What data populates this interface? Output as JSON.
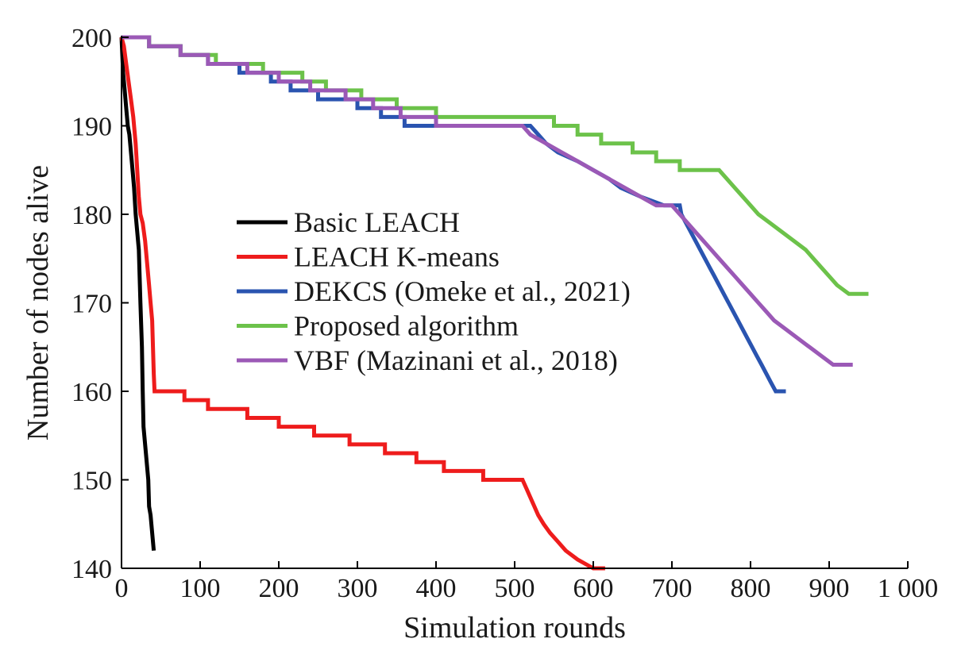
{
  "chart_data": {
    "type": "line",
    "xlabel": "Simulation rounds",
    "ylabel": "Number of nodes alive",
    "xlim": [
      0,
      1000
    ],
    "ylim": [
      140,
      200
    ],
    "xticks": [
      0,
      100,
      200,
      300,
      400,
      500,
      600,
      700,
      800,
      900,
      1000
    ],
    "xtick_labels": [
      "0",
      "100",
      "200",
      "300",
      "400",
      "500",
      "600",
      "700",
      "800",
      "900",
      "1 000"
    ],
    "yticks": [
      140,
      150,
      160,
      170,
      180,
      190,
      200
    ],
    "ytick_labels": [
      "140",
      "150",
      "160",
      "170",
      "180",
      "190",
      "200"
    ],
    "grid": false,
    "legend_position": "center-left",
    "series": [
      {
        "name": "Basic LEACH",
        "color": "#000000",
        "points": [
          [
            0,
            200
          ],
          [
            2,
            196
          ],
          [
            4,
            194
          ],
          [
            6,
            192
          ],
          [
            8,
            190
          ],
          [
            10,
            189
          ],
          [
            12,
            187
          ],
          [
            14,
            185
          ],
          [
            16,
            183
          ],
          [
            18,
            180
          ],
          [
            20,
            178
          ],
          [
            22,
            176
          ],
          [
            24,
            170
          ],
          [
            26,
            165
          ],
          [
            27,
            160
          ],
          [
            28,
            156
          ],
          [
            30,
            154
          ],
          [
            32,
            152
          ],
          [
            34,
            150
          ],
          [
            35,
            147
          ],
          [
            37,
            146
          ],
          [
            38,
            145
          ],
          [
            40,
            143
          ],
          [
            41,
            142
          ]
        ]
      },
      {
        "name": "LEACH K-means",
        "color": "#ee1c1c",
        "points": [
          [
            0,
            200
          ],
          [
            3,
            199
          ],
          [
            6,
            197
          ],
          [
            9,
            195
          ],
          [
            12,
            193
          ],
          [
            15,
            191
          ],
          [
            18,
            188
          ],
          [
            20,
            185
          ],
          [
            22,
            182
          ],
          [
            24,
            180
          ],
          [
            27,
            179
          ],
          [
            30,
            177
          ],
          [
            33,
            174
          ],
          [
            35,
            172
          ],
          [
            37,
            170
          ],
          [
            39,
            168
          ],
          [
            40,
            165
          ],
          [
            41,
            162
          ],
          [
            42,
            160
          ],
          [
            80,
            160
          ],
          [
            80,
            159
          ],
          [
            110,
            159
          ],
          [
            110,
            158
          ],
          [
            160,
            158
          ],
          [
            160,
            157
          ],
          [
            200,
            157
          ],
          [
            200,
            156
          ],
          [
            245,
            156
          ],
          [
            245,
            155
          ],
          [
            290,
            155
          ],
          [
            290,
            154
          ],
          [
            335,
            154
          ],
          [
            335,
            153
          ],
          [
            375,
            153
          ],
          [
            375,
            152
          ],
          [
            410,
            152
          ],
          [
            410,
            151
          ],
          [
            460,
            151
          ],
          [
            460,
            150
          ],
          [
            510,
            150
          ],
          [
            515,
            149
          ],
          [
            520,
            148
          ],
          [
            525,
            147
          ],
          [
            530,
            146
          ],
          [
            537,
            145
          ],
          [
            545,
            144
          ],
          [
            555,
            143
          ],
          [
            565,
            142
          ],
          [
            580,
            141
          ],
          [
            600,
            140
          ],
          [
            615,
            140
          ]
        ]
      },
      {
        "name": "DEKCS (Omeke et al., 2021)",
        "color": "#2a54b0",
        "points": [
          [
            0,
            200
          ],
          [
            35,
            200
          ],
          [
            35,
            199
          ],
          [
            75,
            199
          ],
          [
            75,
            198
          ],
          [
            110,
            198
          ],
          [
            110,
            197
          ],
          [
            150,
            197
          ],
          [
            150,
            196
          ],
          [
            190,
            196
          ],
          [
            190,
            195
          ],
          [
            215,
            195
          ],
          [
            215,
            194
          ],
          [
            250,
            194
          ],
          [
            250,
            193
          ],
          [
            300,
            193
          ],
          [
            300,
            192
          ],
          [
            330,
            192
          ],
          [
            330,
            191
          ],
          [
            360,
            191
          ],
          [
            360,
            190
          ],
          [
            520,
            190
          ],
          [
            530,
            189
          ],
          [
            540,
            188
          ],
          [
            555,
            187
          ],
          [
            580,
            186
          ],
          [
            600,
            185
          ],
          [
            620,
            184
          ],
          [
            635,
            183
          ],
          [
            660,
            182
          ],
          [
            690,
            181
          ],
          [
            710,
            181
          ],
          [
            712,
            180
          ],
          [
            718,
            179
          ],
          [
            724,
            178
          ],
          [
            730,
            177
          ],
          [
            736,
            176
          ],
          [
            742,
            175
          ],
          [
            748,
            174
          ],
          [
            754,
            173
          ],
          [
            760,
            172
          ],
          [
            766,
            171
          ],
          [
            772,
            170
          ],
          [
            778,
            169
          ],
          [
            784,
            168
          ],
          [
            790,
            167
          ],
          [
            796,
            166
          ],
          [
            802,
            165
          ],
          [
            808,
            164
          ],
          [
            814,
            163
          ],
          [
            820,
            162
          ],
          [
            826,
            161
          ],
          [
            832,
            160
          ],
          [
            845,
            160
          ]
        ]
      },
      {
        "name": "Proposed algorithm",
        "color": "#6cc24a",
        "points": [
          [
            0,
            200
          ],
          [
            35,
            200
          ],
          [
            35,
            199
          ],
          [
            75,
            199
          ],
          [
            75,
            198
          ],
          [
            120,
            198
          ],
          [
            120,
            197
          ],
          [
            180,
            197
          ],
          [
            180,
            196
          ],
          [
            230,
            196
          ],
          [
            230,
            195
          ],
          [
            260,
            195
          ],
          [
            260,
            194
          ],
          [
            305,
            194
          ],
          [
            305,
            193
          ],
          [
            350,
            193
          ],
          [
            350,
            192
          ],
          [
            400,
            192
          ],
          [
            400,
            191
          ],
          [
            550,
            191
          ],
          [
            550,
            190
          ],
          [
            580,
            190
          ],
          [
            580,
            189
          ],
          [
            610,
            189
          ],
          [
            610,
            188
          ],
          [
            650,
            188
          ],
          [
            650,
            187
          ],
          [
            680,
            187
          ],
          [
            680,
            186
          ],
          [
            710,
            186
          ],
          [
            710,
            185
          ],
          [
            760,
            185
          ],
          [
            770,
            184
          ],
          [
            780,
            183
          ],
          [
            790,
            182
          ],
          [
            800,
            181
          ],
          [
            810,
            180
          ],
          [
            825,
            179
          ],
          [
            840,
            178
          ],
          [
            855,
            177
          ],
          [
            870,
            176
          ],
          [
            880,
            175
          ],
          [
            890,
            174
          ],
          [
            900,
            173
          ],
          [
            910,
            172
          ],
          [
            925,
            171
          ],
          [
            950,
            171
          ]
        ]
      },
      {
        "name": "VBF (Mazinani et al., 2018)",
        "color": "#9b59b6",
        "points": [
          [
            0,
            200
          ],
          [
            35,
            200
          ],
          [
            35,
            199
          ],
          [
            75,
            199
          ],
          [
            75,
            198
          ],
          [
            110,
            198
          ],
          [
            110,
            197
          ],
          [
            160,
            197
          ],
          [
            160,
            196
          ],
          [
            200,
            196
          ],
          [
            200,
            195
          ],
          [
            240,
            195
          ],
          [
            240,
            194
          ],
          [
            285,
            194
          ],
          [
            285,
            193
          ],
          [
            320,
            193
          ],
          [
            320,
            192
          ],
          [
            355,
            192
          ],
          [
            355,
            191
          ],
          [
            400,
            191
          ],
          [
            400,
            190
          ],
          [
            510,
            190
          ],
          [
            520,
            189
          ],
          [
            540,
            188
          ],
          [
            560,
            187
          ],
          [
            580,
            186
          ],
          [
            600,
            185
          ],
          [
            620,
            184
          ],
          [
            640,
            183
          ],
          [
            660,
            182
          ],
          [
            680,
            181
          ],
          [
            700,
            181
          ],
          [
            710,
            180
          ],
          [
            720,
            179
          ],
          [
            730,
            178
          ],
          [
            740,
            177
          ],
          [
            750,
            176
          ],
          [
            760,
            175
          ],
          [
            770,
            174
          ],
          [
            780,
            173
          ],
          [
            790,
            172
          ],
          [
            800,
            171
          ],
          [
            810,
            170
          ],
          [
            820,
            169
          ],
          [
            830,
            168
          ],
          [
            845,
            167
          ],
          [
            860,
            166
          ],
          [
            875,
            165
          ],
          [
            890,
            164
          ],
          [
            905,
            163
          ],
          [
            930,
            163
          ]
        ]
      }
    ]
  }
}
